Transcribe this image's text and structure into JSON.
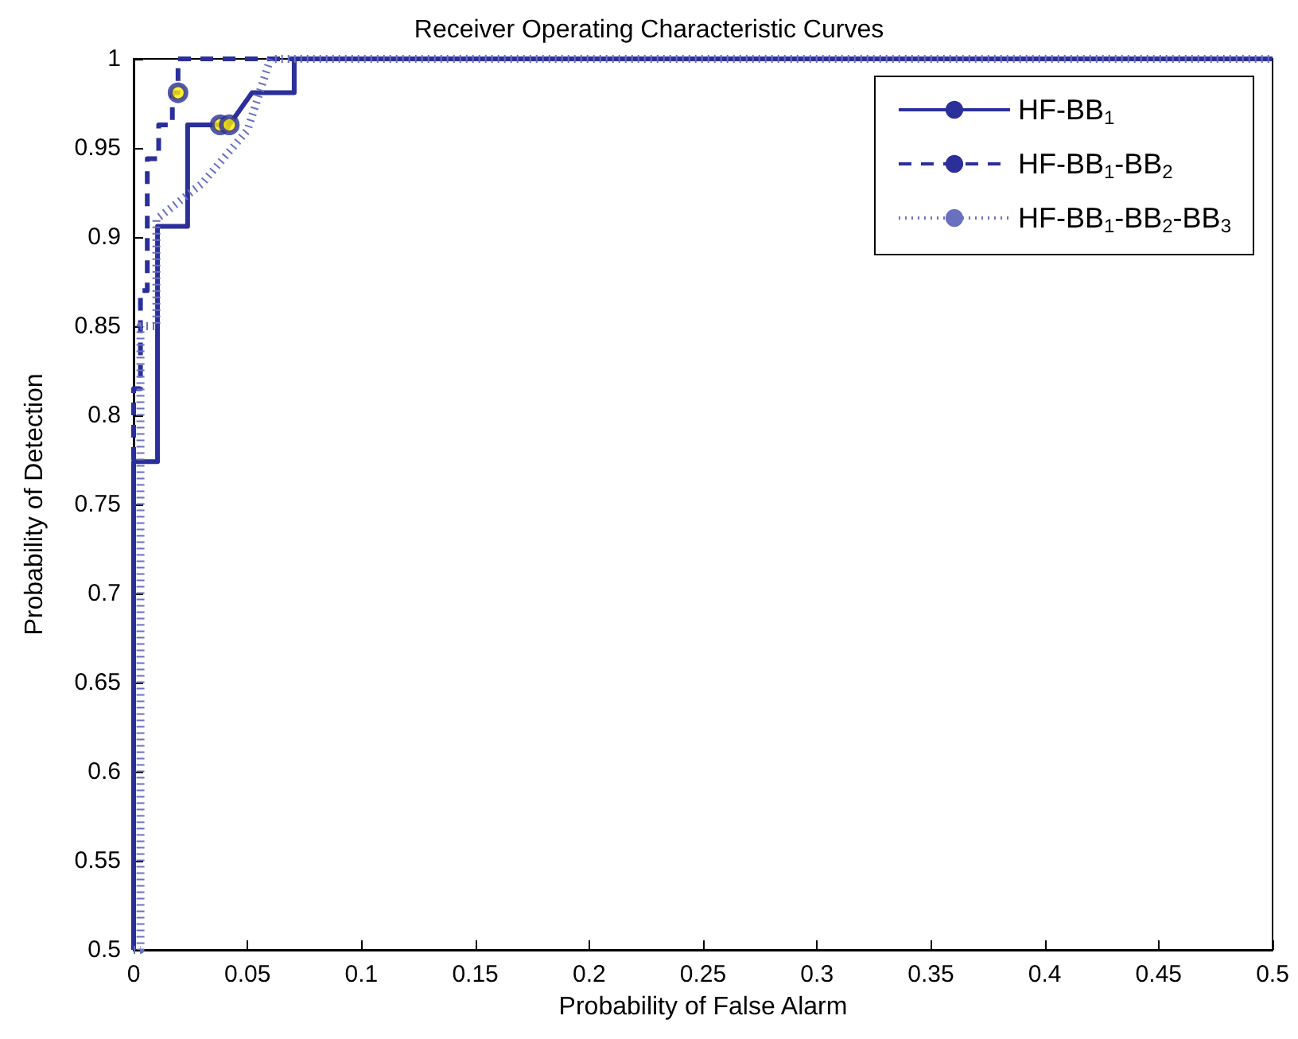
{
  "chart_data": {
    "type": "line",
    "title": "Receiver Operating Characteristic Curves",
    "xlabel": "Probability of False Alarm",
    "ylabel": "Probability of Detection",
    "xlim": [
      0,
      0.5
    ],
    "ylim": [
      0.5,
      1
    ],
    "xticks": [
      0,
      0.05,
      0.1,
      0.15,
      0.2,
      0.25,
      0.3,
      0.35,
      0.4,
      0.45,
      0.5
    ],
    "yticks": [
      0.5,
      0.55,
      0.6,
      0.65,
      0.7,
      0.75,
      0.8,
      0.85,
      0.9,
      0.95,
      1
    ],
    "grid": false,
    "legend": "top right",
    "marker": "none",
    "series": [
      {
        "name": "HF-BB$_{1}$",
        "color": "#2b2f99",
        "line_style": "solid",
        "x": [
          0,
          0,
          0.0105,
          0.0105,
          0.0237,
          0.0237,
          0.042,
          0.052,
          0.0705,
          0.0705,
          0.5
        ],
        "values": [
          0.5,
          0.774,
          0.774,
          0.906,
          0.906,
          0.963,
          0.963,
          0.981,
          0.981,
          1,
          1
        ]
      },
      {
        "name": "HF-BB$_{1}$-BB$_{2}$",
        "color": "#2b2f99",
        "line_style": "dashed",
        "x": [
          0,
          0,
          0.003,
          0.003,
          0.006,
          0.006,
          0.011,
          0.011,
          0.017,
          0.017,
          0.0195,
          0.0195,
          0.5
        ],
        "values": [
          0.5,
          0.815,
          0.815,
          0.87,
          0.87,
          0.944,
          0.944,
          0.963,
          0.963,
          0.981,
          0.981,
          1,
          1
        ]
      },
      {
        "name": "HF-BB$_{1}$-BB$_{2}$-BB$_{3}$",
        "color": "#6a70c0",
        "line_style": "dotted",
        "x": [
          0,
          0.003,
          0.003,
          0.01,
          0.01,
          0.02,
          0.03,
          0.04,
          0.05,
          0.055,
          0.06,
          0.5
        ],
        "values": [
          0.5,
          0.5,
          0.85,
          0.85,
          0.91,
          0.92,
          0.93,
          0.945,
          0.96,
          0.98,
          1,
          1
        ]
      },
      {
        "type": "scatter",
        "marker": "circle",
        "color": "#ffee00",
        "x": [
          0.0195,
          0.038,
          0.042
        ],
        "values": [
          0.981,
          0.963,
          0.963
        ]
      }
    ]
  }
}
